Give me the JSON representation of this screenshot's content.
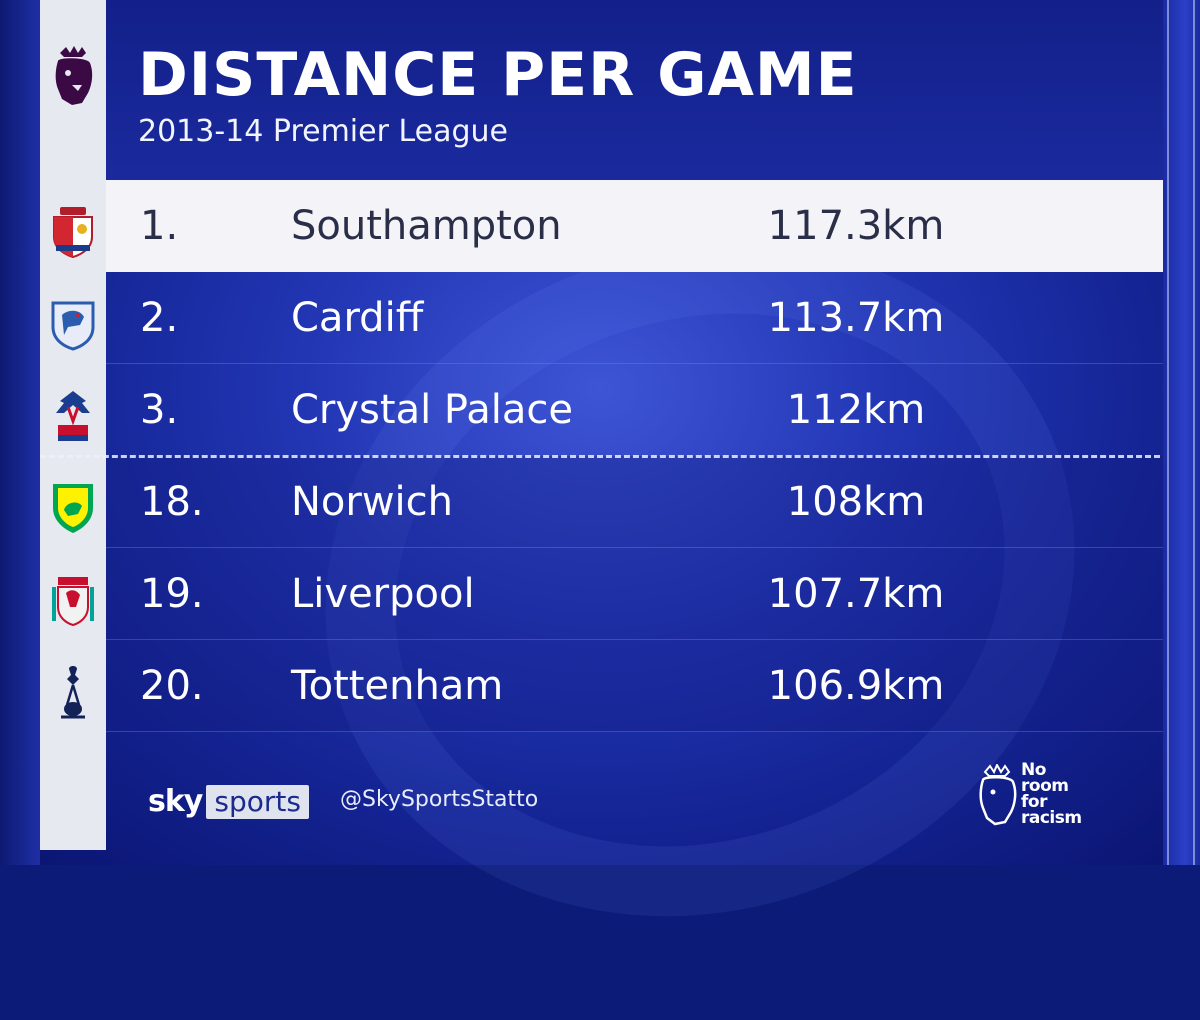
{
  "header": {
    "title": "DISTANCE PER GAME",
    "subtitle": "2013-14 Premier League",
    "logo_icon": "premier-league-lion-icon"
  },
  "rows": [
    {
      "rank": "1.",
      "team": "Southampton",
      "distance": "117.3km",
      "crest_icon": "southampton-crest-icon",
      "highlighted": true
    },
    {
      "rank": "2.",
      "team": "Cardiff",
      "distance": "113.7km",
      "crest_icon": "cardiff-crest-icon"
    },
    {
      "rank": "3.",
      "team": "Crystal Palace",
      "distance": "112km",
      "crest_icon": "crystal-palace-crest-icon"
    },
    {
      "rank": "18.",
      "team": "Norwich",
      "distance": "108km",
      "crest_icon": "norwich-crest-icon"
    },
    {
      "rank": "19.",
      "team": "Liverpool",
      "distance": "107.7km",
      "crest_icon": "liverpool-crest-icon"
    },
    {
      "rank": "20.",
      "team": "Tottenham",
      "distance": "106.9km",
      "crest_icon": "tottenham-crest-icon"
    }
  ],
  "footer": {
    "brand_sky": "sky",
    "brand_sports": "sports",
    "handle": "@SkySportsStatto",
    "campaign_line1": "No",
    "campaign_line2": "room",
    "campaign_line3": "for",
    "campaign_line4": "racism"
  },
  "colors": {
    "background": "#1a2aa0",
    "highlight_row": "#f4f4f8",
    "text": "#ffffff",
    "highlight_text": "#2a2e48"
  }
}
